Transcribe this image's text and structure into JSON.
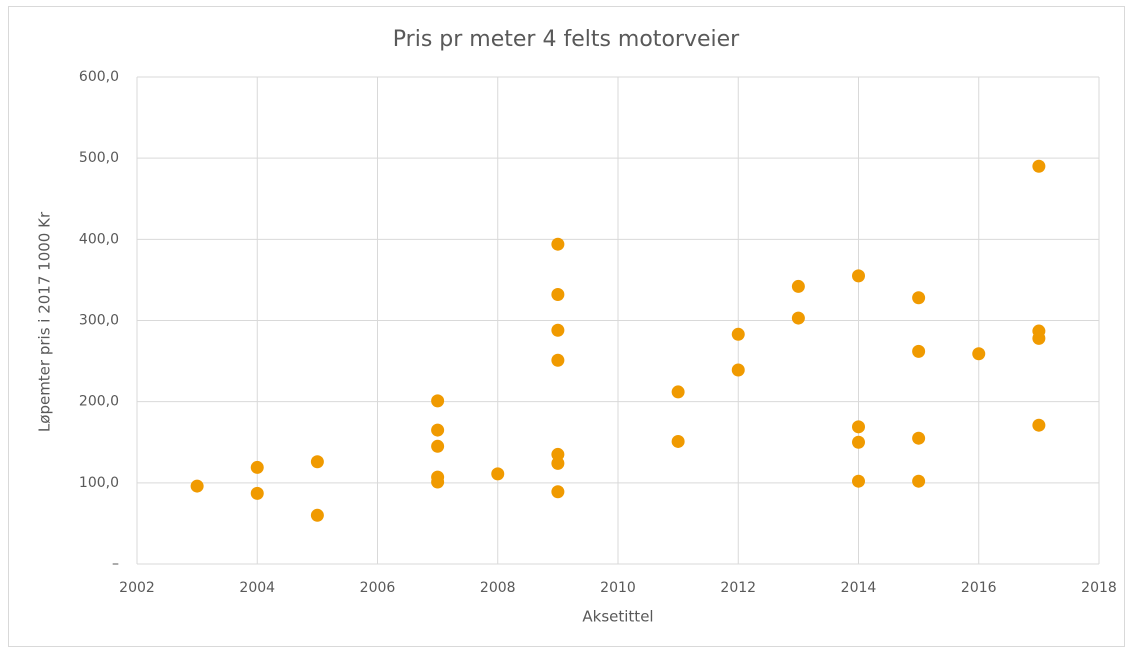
{
  "chart_data": {
    "type": "scatter",
    "title": "Pris pr meter 4 felts motorveier",
    "x_label": "Aksetittel",
    "y_label": "Løpemter pris i  2017 1000 Kr",
    "x": [
      2003,
      2004,
      2004,
      2005,
      2005,
      2007,
      2007,
      2007,
      2007,
      2007,
      2008,
      2009,
      2009,
      2009,
      2009,
      2009,
      2009,
      2009,
      2011,
      2011,
      2012,
      2012,
      2013,
      2013,
      2014,
      2014,
      2014,
      2014,
      2015,
      2015,
      2015,
      2015,
      2016,
      2017,
      2017,
      2017,
      2017
    ],
    "values": [
      96,
      119,
      87,
      126,
      60,
      201,
      165,
      145,
      107,
      101,
      111,
      394,
      332,
      288,
      251,
      135,
      124,
      89,
      212,
      151,
      283,
      239,
      342,
      303,
      355,
      169,
      150,
      102,
      328,
      262,
      155,
      102,
      259,
      490,
      287,
      278,
      171
    ],
    "color": "#f09a00",
    "xlim": [
      2002,
      2018
    ],
    "xticks": [
      2002,
      2004,
      2006,
      2008,
      2010,
      2012,
      2014,
      2016,
      2018
    ],
    "ylim": [
      0,
      600
    ],
    "yticks": [
      {
        "value": 0,
        "label": "–"
      },
      {
        "value": 100,
        "label": "100,0"
      },
      {
        "value": 200,
        "label": "200,0"
      },
      {
        "value": 300,
        "label": "300,0"
      },
      {
        "value": 400,
        "label": "400,0"
      },
      {
        "value": 500,
        "label": "500,0"
      },
      {
        "value": 600,
        "label": "600,0"
      }
    ],
    "grid": true
  }
}
